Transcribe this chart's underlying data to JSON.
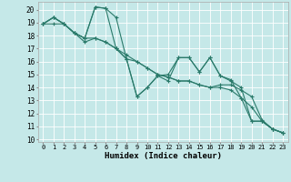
{
  "title": "",
  "xlabel": "Humidex (Indice chaleur)",
  "ylabel": "",
  "background_color": "#c5e8e8",
  "grid_color": "#ffffff",
  "line_color": "#2a7a6a",
  "xlim": [
    -0.5,
    23.5
  ],
  "ylim": [
    9.8,
    20.6
  ],
  "xticks": [
    0,
    1,
    2,
    3,
    4,
    5,
    6,
    7,
    8,
    9,
    10,
    11,
    12,
    13,
    14,
    15,
    16,
    17,
    18,
    19,
    20,
    21,
    22,
    23
  ],
  "yticks": [
    10,
    11,
    12,
    13,
    14,
    15,
    16,
    17,
    18,
    19,
    20
  ],
  "series": [
    [
      18.9,
      19.4,
      18.9,
      18.2,
      17.8,
      20.2,
      20.1,
      19.4,
      16.2,
      13.3,
      14.0,
      14.9,
      15.0,
      16.3,
      16.3,
      15.2,
      16.3,
      14.9,
      14.6,
      13.2,
      11.4,
      11.4,
      10.8,
      10.5
    ],
    [
      18.9,
      18.9,
      18.9,
      18.2,
      17.8,
      17.8,
      17.5,
      17.0,
      16.5,
      16.0,
      15.5,
      15.0,
      14.8,
      14.5,
      14.5,
      14.2,
      14.0,
      14.0,
      13.8,
      13.2,
      12.5,
      11.4,
      10.8,
      10.5
    ],
    [
      18.9,
      19.4,
      18.9,
      18.2,
      17.5,
      17.8,
      17.5,
      17.0,
      16.2,
      16.0,
      15.5,
      15.0,
      14.8,
      14.5,
      14.5,
      14.2,
      14.0,
      14.2,
      14.2,
      13.8,
      13.3,
      11.5,
      10.8,
      10.5
    ],
    [
      18.9,
      19.4,
      18.9,
      18.2,
      17.8,
      20.2,
      20.1,
      17.0,
      16.2,
      13.3,
      14.0,
      14.9,
      14.5,
      16.3,
      16.3,
      15.2,
      16.3,
      14.9,
      14.5,
      14.0,
      11.4,
      11.4,
      10.8,
      10.5
    ]
  ]
}
